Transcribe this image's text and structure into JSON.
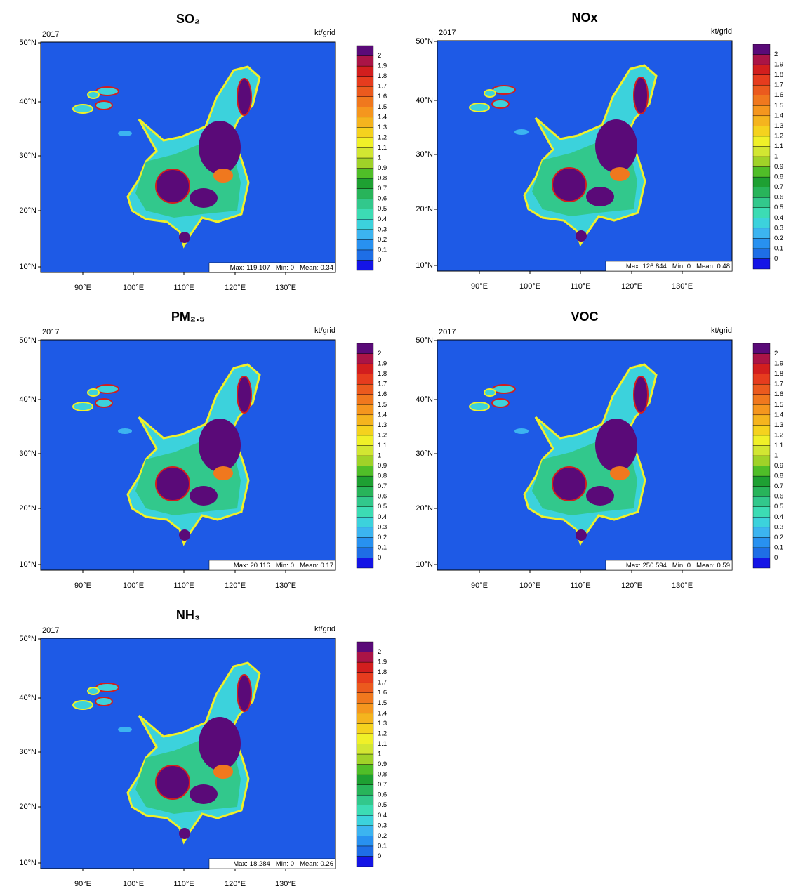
{
  "panels": [
    {
      "title": "SO₂",
      "year": "2017",
      "unit": "kt/grid",
      "stats": [
        {
          "label": "Max:",
          "value": 119.107
        },
        {
          "label": "Min:",
          "value": 0
        },
        {
          "label": "Mean:",
          "value": 0.34
        }
      ]
    },
    {
      "title": "NOx",
      "year": "2017",
      "unit": "kt/grid",
      "stats": [
        {
          "label": "Max:",
          "value": 126.844
        },
        {
          "label": "Min:",
          "value": 0
        },
        {
          "label": "Mean:",
          "value": 0.48
        }
      ]
    },
    {
      "title": "PM₂.₅",
      "year": "2017",
      "unit": "kt/grid",
      "stats": [
        {
          "label": "Max:",
          "value": 20.116
        },
        {
          "label": "Min:",
          "value": 0
        },
        {
          "label": "Mean:",
          "value": 0.17
        }
      ]
    },
    {
      "title": "VOC",
      "year": "2017",
      "unit": "kt/grid",
      "stats": [
        {
          "label": "Max:",
          "value": 250.594
        },
        {
          "label": "Min:",
          "value": 0
        },
        {
          "label": "Mean:",
          "value": 0.59
        }
      ]
    },
    {
      "title": "NH₃",
      "year": "2017",
      "unit": "kt/grid",
      "stats": [
        {
          "label": "Max:",
          "value": 18.284
        },
        {
          "label": "Min:",
          "value": 0
        },
        {
          "label": "Mean:",
          "value": 0.26
        }
      ]
    }
  ],
  "lat_labels": [
    "50°N",
    "40°N",
    "30°N",
    "20°N",
    "10°N"
  ],
  "lon_labels": [
    "90°E",
    "100°E",
    "110°E",
    "120°E",
    "130°E"
  ],
  "colorbar": {
    "ticks": [
      0,
      0.1,
      0.2,
      0.3,
      0.4,
      0.5,
      0.6,
      0.7,
      0.8,
      0.9,
      1,
      1.1,
      1.2,
      1.3,
      1.4,
      1.5,
      1.6,
      1.7,
      1.8,
      1.9,
      2
    ],
    "colors": [
      "#1414e6",
      "#1e6ee6",
      "#2891f0",
      "#3cb4f0",
      "#3cd2dc",
      "#3cdcb4",
      "#32c88c",
      "#28b45a",
      "#1ea032",
      "#50be28",
      "#a0d228",
      "#d2e632",
      "#f0f028",
      "#f5d21e",
      "#f5b41e",
      "#f5961e",
      "#f0781e",
      "#eb5a1e",
      "#e63c1e",
      "#d21e1e",
      "#aa1446",
      "#5a0a78"
    ]
  }
}
